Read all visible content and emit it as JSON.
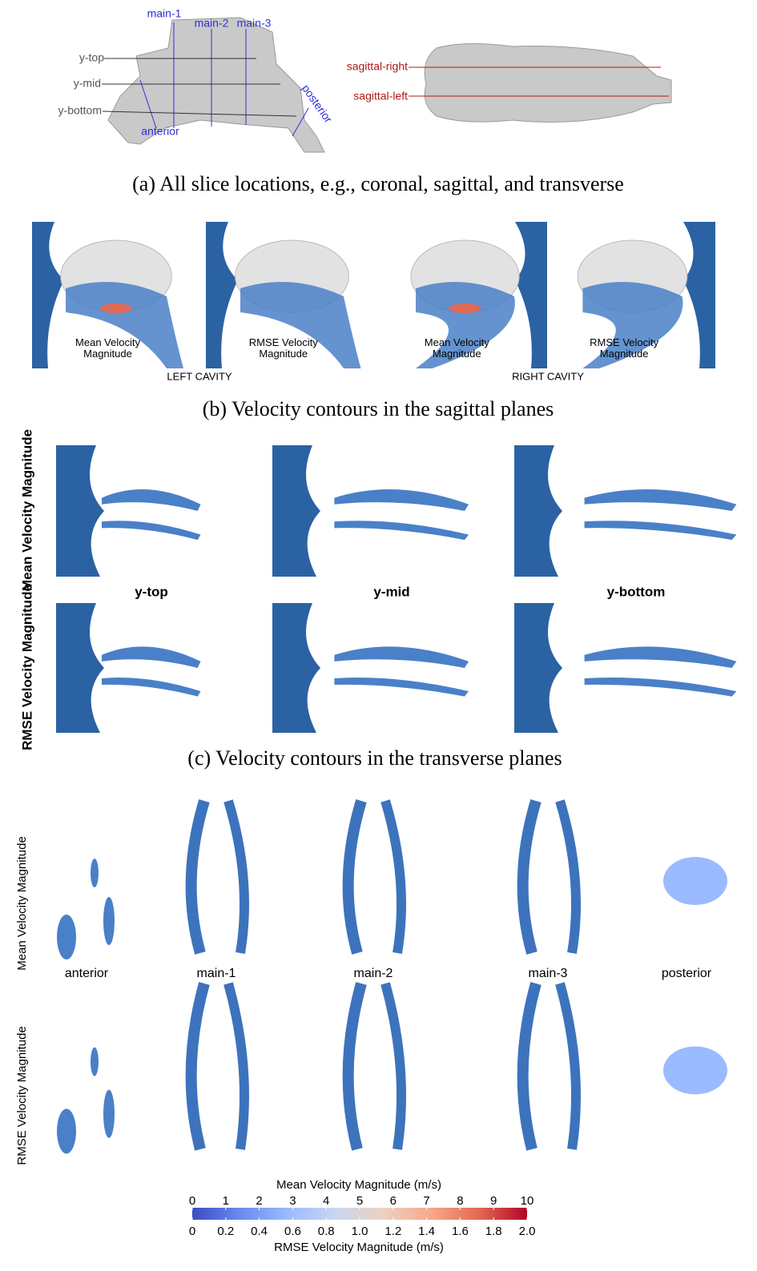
{
  "panel_a": {
    "caption": "(a) All slice locations, e.g., coronal, sagittal, and transverse",
    "coronal_labels": [
      "main-1",
      "main-2",
      "main-3"
    ],
    "transverse_labels": [
      "y-top",
      "y-mid",
      "y-bottom"
    ],
    "end_labels": [
      "anterior",
      "posterior"
    ],
    "sagittal_labels": [
      "sagittal-right",
      "sagittal-left"
    ]
  },
  "panel_b": {
    "caption": "(b) Velocity contours in the sagittal planes",
    "image_labels": [
      "Mean Velocity Magnitude",
      "RMSE Velocity Magnitude",
      "Mean Velocity Magnitude",
      "RMSE Velocity Magnitude"
    ],
    "groups": [
      "LEFT CAVITY",
      "RIGHT CAVITY"
    ]
  },
  "panel_c": {
    "caption": "(c) Velocity contours in the transverse planes",
    "row_labels": [
      "Mean Velocity Magnitude",
      "RMSE Velocity Magnitude"
    ],
    "column_labels": [
      "y-top",
      "y-mid",
      "y-bottom"
    ]
  },
  "panel_d": {
    "row_labels": [
      "Mean Velocity Magnitude",
      "RMSE Velocity Magnitude"
    ],
    "column_labels": [
      "anterior",
      "main-1",
      "main-2",
      "main-3",
      "posterior"
    ]
  },
  "colorbar": {
    "mean_label": "Mean Velocity Magnitude (m/s)",
    "mean_lim": [
      0,
      10
    ],
    "mean_ticks": [
      0,
      1,
      2,
      3,
      4,
      5,
      6,
      7,
      8,
      9,
      10
    ],
    "rmse_label": "RMSE Velocity Magnitude (m/s)",
    "rmse_lim": [
      0,
      2
    ],
    "rmse_ticks": [
      0,
      0.2,
      0.4,
      0.6,
      0.8,
      {
        "value": 1,
        "label": "1.0"
      },
      1.2,
      1.4,
      1.6,
      1.8,
      {
        "value": 2,
        "label": "2.0"
      }
    ],
    "colors": [
      "#3b4cc0",
      "#6a8bef",
      "#9abbff",
      "#c9d7f0",
      "#edd1c2",
      "#f7a889",
      "#e26952",
      "#b40426"
    ]
  }
}
